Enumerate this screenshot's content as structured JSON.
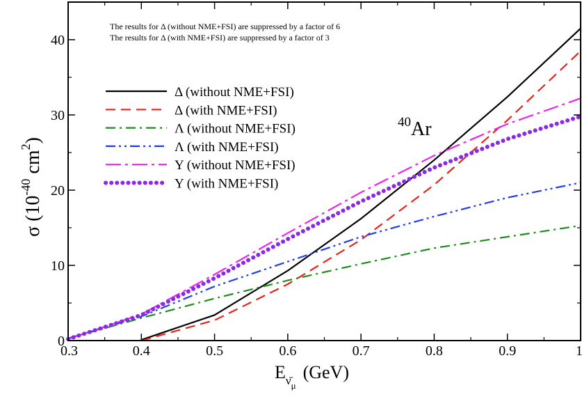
{
  "chart_data": {
    "type": "line",
    "xlabel": "E",
    "xlabel_subscript": "ν̄",
    "xlabel_subsubscript": "μ",
    "xlabel_unit": "(GeV)",
    "ylabel": "σ (10",
    "ylabel_exp": "-40",
    "ylabel_unit": " cm",
    "ylabel_unit_exp": "2",
    "ylabel_close": ")",
    "xlim": [
      0.3,
      1.0
    ],
    "ylim": [
      0,
      45
    ],
    "x_ticks": [
      0.3,
      0.4,
      0.5,
      0.6,
      0.7,
      0.8,
      0.9,
      1.0
    ],
    "x_tick_labels": [
      "0.3",
      "0.4",
      "0.5",
      "0.6",
      "0.7",
      "0.8",
      "0.9",
      "1"
    ],
    "y_ticks": [
      0,
      10,
      20,
      30,
      40
    ],
    "y_tick_labels": [
      "0",
      "10",
      "20",
      "30",
      "40"
    ],
    "grid": false,
    "legend_placement": "upper-left",
    "notes": [
      "The results for Δ (without NME+FSI) are suppressed by a factor of 6",
      "The results for Δ (with NME+FSI) are suppressed by a factor of 3"
    ],
    "annotation": {
      "sup": "40",
      "main": "Ar"
    },
    "series": [
      {
        "name": "Δ (without NME+FSI)",
        "color": "#000000",
        "dash": "solid",
        "points": [
          [
            0.4,
            0.1
          ],
          [
            0.5,
            3.4
          ],
          [
            0.6,
            9.3
          ],
          [
            0.7,
            16.2
          ],
          [
            0.8,
            24.0
          ],
          [
            0.9,
            32.4
          ],
          [
            1.0,
            41.5
          ]
        ]
      },
      {
        "name": "Δ (with NME+FSI)",
        "color": "#e8231b",
        "dash": "dash",
        "points": [
          [
            0.4,
            0.0
          ],
          [
            0.5,
            2.7
          ],
          [
            0.6,
            7.5
          ],
          [
            0.7,
            13.4
          ],
          [
            0.8,
            20.7
          ],
          [
            0.9,
            29.3
          ],
          [
            1.0,
            38.5
          ]
        ]
      },
      {
        "name": "Λ (without NME+FSI)",
        "color": "#1e8c1e",
        "dash": "dashdot",
        "points": [
          [
            0.3,
            0.3
          ],
          [
            0.4,
            3.0
          ],
          [
            0.5,
            5.6
          ],
          [
            0.6,
            8.0
          ],
          [
            0.7,
            10.2
          ],
          [
            0.8,
            12.3
          ],
          [
            0.9,
            13.8
          ],
          [
            1.0,
            15.3
          ]
        ]
      },
      {
        "name": "Λ (with NME+FSI)",
        "color": "#1f3df0",
        "dash": "dashdotdot",
        "points": [
          [
            0.3,
            0.3
          ],
          [
            0.4,
            3.2
          ],
          [
            0.5,
            7.2
          ],
          [
            0.6,
            10.5
          ],
          [
            0.7,
            13.8
          ],
          [
            0.8,
            16.5
          ],
          [
            0.9,
            19.0
          ],
          [
            1.0,
            21.0
          ]
        ]
      },
      {
        "name": "Y (without NME+FSI)",
        "color": "#ee22ee",
        "dash": "longdashdot",
        "points": [
          [
            0.3,
            0.2
          ],
          [
            0.4,
            3.5
          ],
          [
            0.5,
            8.8
          ],
          [
            0.6,
            14.3
          ],
          [
            0.7,
            19.7
          ],
          [
            0.8,
            24.6
          ],
          [
            0.9,
            28.8
          ],
          [
            1.0,
            32.2
          ]
        ]
      },
      {
        "name": "Y (with NME+FSI)",
        "color": "#8a2be2",
        "dash": "dotted",
        "points": [
          [
            0.3,
            0.2
          ],
          [
            0.4,
            3.4
          ],
          [
            0.5,
            8.3
          ],
          [
            0.6,
            13.5
          ],
          [
            0.7,
            18.5
          ],
          [
            0.8,
            23.0
          ],
          [
            0.9,
            26.8
          ],
          [
            1.0,
            29.8
          ]
        ]
      }
    ]
  }
}
